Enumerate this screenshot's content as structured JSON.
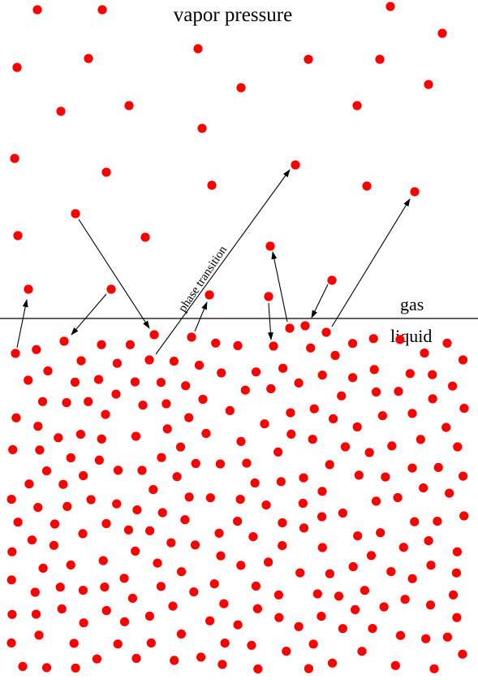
{
  "diagram": {
    "title": "vapor pressure",
    "gas_label": "gas",
    "liquid_label": "liquid",
    "transition_label": "phase transition",
    "molecule_color": "#ff0000",
    "line_color": "#000000"
  }
}
